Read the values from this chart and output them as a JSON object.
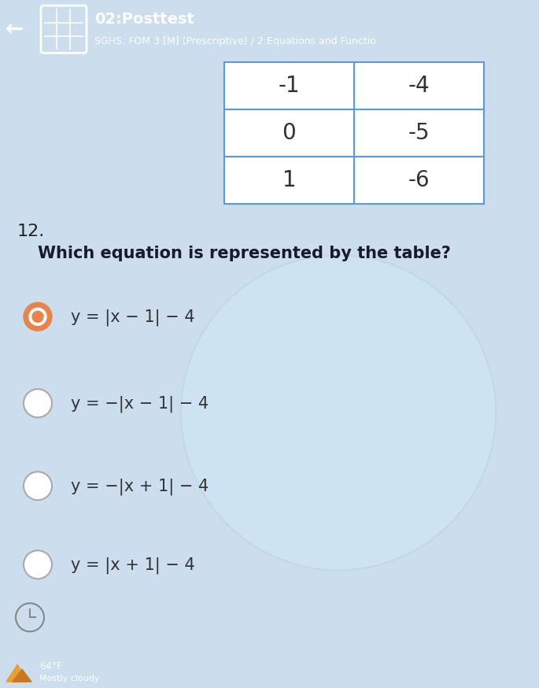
{
  "title": "02:Posttest",
  "subtitle": "SGHS: FOM 3 [M] (Prescriptive) / 2:Equations and Functio",
  "header_bg": "#4a90d9",
  "body_bg": "#ccdded",
  "question_number": "12.",
  "question_text": "Which equation is represented by the table?",
  "table_border": "#5b9bd5",
  "options": [
    "y = |x − 1| − 4",
    "y = −|x − 1| − 4",
    "y = −|x + 1| − 4",
    "y = |x + 1| − 4"
  ],
  "selected_index": 0,
  "selected_color": "#e8834a",
  "circle_large_color": "#d0e8f5",
  "circle_large_edge": "#b8d4e8",
  "bottom_bar_color": "#3a7abf",
  "weather_line1": "64°F",
  "weather_line2": "Mostly cloudy"
}
